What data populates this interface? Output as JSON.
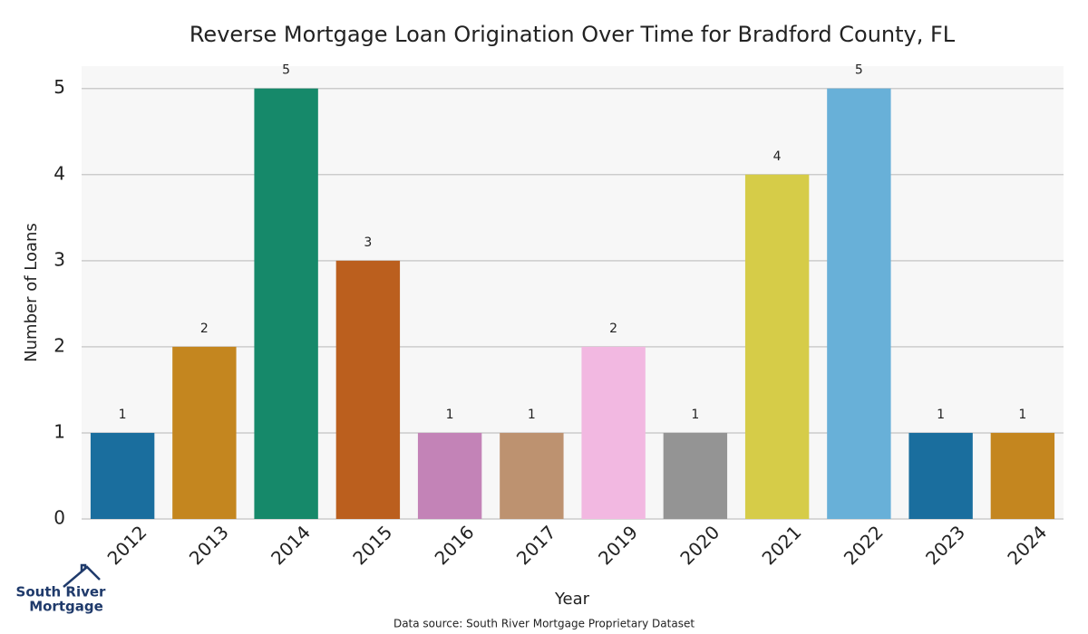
{
  "chart_data": {
    "type": "bar",
    "title": "Reverse Mortgage Loan Origination Over Time for Bradford County, FL",
    "x_label": "Year",
    "y_label": "Number of Loans",
    "categories": [
      "2012",
      "2013",
      "2014",
      "2015",
      "2016",
      "2017",
      "2019",
      "2020",
      "2021",
      "2022",
      "2023",
      "2024"
    ],
    "values": [
      1,
      2,
      5,
      3,
      1,
      1,
      2,
      1,
      4,
      5,
      1,
      1
    ],
    "colors": [
      "#1a6e9e",
      "#c4861f",
      "#16896a",
      "#bb5f1e",
      "#c383b7",
      "#bd9270",
      "#f2b8e1",
      "#949494",
      "#d6cc48",
      "#68b0d8",
      "#1a6e9e",
      "#c4861f"
    ],
    "ylim": [
      0,
      5.26
    ],
    "yticks": [
      0,
      1,
      2,
      3,
      4,
      5
    ],
    "grid": true,
    "source": "Data source: South River Mortgage Proprietary Dataset"
  },
  "logo": {
    "line1": "South River",
    "line2": "Mortgage"
  }
}
